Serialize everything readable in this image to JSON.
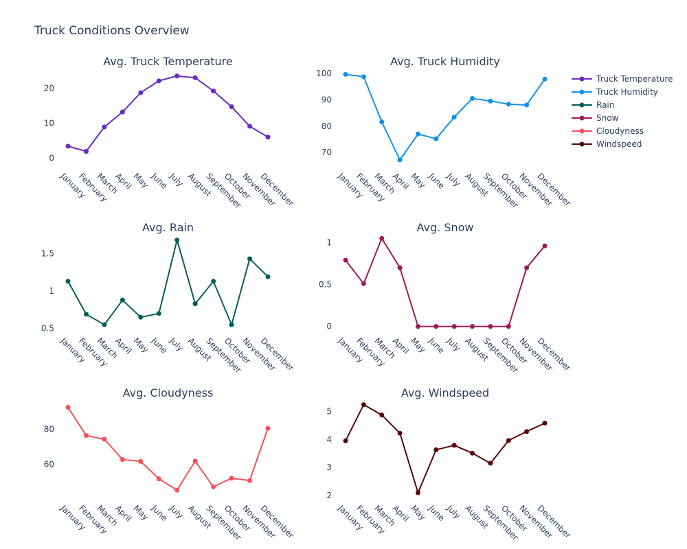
{
  "title": "Truck Conditions Overview",
  "legend": [
    {
      "label": "Truck Temperature",
      "color": "#6929c4"
    },
    {
      "label": "Truck Humidity",
      "color": "#1192e8"
    },
    {
      "label": "Rain",
      "color": "#005d5d"
    },
    {
      "label": "Snow",
      "color": "#9f1853"
    },
    {
      "label": "Cloudyness",
      "color": "#fa4d56"
    },
    {
      "label": "Windspeed",
      "color": "#570408"
    }
  ],
  "chart_data": [
    {
      "type": "line",
      "title": "Avg. Truck Temperature",
      "categories": [
        "January",
        "February",
        "March",
        "April",
        "May",
        "June",
        "July",
        "August",
        "September",
        "October",
        "November",
        "December"
      ],
      "series": [
        {
          "name": "Truck Temperature",
          "color": "#6929c4",
          "values": [
            3.4,
            1.9,
            8.9,
            13.2,
            18.7,
            22.1,
            23.5,
            23.0,
            19.2,
            14.7,
            9.1,
            6.0
          ]
        }
      ],
      "ylim": [
        -2.5,
        26.0
      ],
      "yticks": [
        0,
        10,
        20
      ]
    },
    {
      "type": "line",
      "title": "Avg. Truck Humidity",
      "categories": [
        "January",
        "February",
        "March",
        "April",
        "May",
        "June",
        "July",
        "August",
        "September",
        "October",
        "November",
        "December"
      ],
      "series": [
        {
          "name": "Truck Humidity",
          "color": "#1192e8",
          "values": [
            99.6,
            98.7,
            81.6,
            67.2,
            77.0,
            75.2,
            83.4,
            90.5,
            89.5,
            88.3,
            88.0,
            97.8
          ]
        }
      ],
      "ylim": [
        64.6,
        102.3
      ],
      "yticks": [
        70,
        80,
        90,
        100
      ]
    },
    {
      "type": "line",
      "title": "Avg. Rain",
      "categories": [
        "January",
        "February",
        "March",
        "April",
        "May",
        "June",
        "July",
        "August",
        "September",
        "October",
        "November",
        "December"
      ],
      "series": [
        {
          "name": "Rain",
          "color": "#005d5d",
          "values": [
            1.13,
            0.69,
            0.55,
            0.88,
            0.65,
            0.7,
            1.68,
            0.83,
            1.13,
            0.55,
            1.43,
            1.19
          ]
        }
      ],
      "ylim": [
        0.46,
        1.77
      ],
      "yticks": [
        0.5,
        1,
        1.5
      ]
    },
    {
      "type": "line",
      "title": "Avg. Snow",
      "categories": [
        "January",
        "February",
        "March",
        "April",
        "May",
        "June",
        "July",
        "August",
        "September",
        "October",
        "November",
        "December"
      ],
      "series": [
        {
          "name": "Snow",
          "color": "#9f1853",
          "values": [
            0.79,
            0.51,
            1.05,
            0.7,
            0,
            0,
            0,
            0,
            0,
            0,
            0.7,
            0.96
          ]
        }
      ],
      "ylim": [
        -0.06,
        1.11
      ],
      "yticks": [
        0,
        0.5,
        1
      ]
    },
    {
      "type": "line",
      "title": "Avg. Cloudyness",
      "categories": [
        "January",
        "February",
        "March",
        "April",
        "May",
        "June",
        "July",
        "August",
        "September",
        "October",
        "November",
        "December"
      ],
      "series": [
        {
          "name": "Cloudyness",
          "color": "#fa4d56",
          "values": [
            92.6,
            76.5,
            74.4,
            62.8,
            61.7,
            51.8,
            45.3,
            61.9,
            47.2,
            52.1,
            50.8,
            80.6
          ]
        }
      ],
      "ylim": [
        40.3,
        97.5
      ],
      "yticks": [
        60,
        80
      ]
    },
    {
      "type": "line",
      "title": "Avg. Windspeed",
      "categories": [
        "January",
        "February",
        "March",
        "April",
        "May",
        "June",
        "July",
        "August",
        "September",
        "October",
        "November",
        "December"
      ],
      "series": [
        {
          "name": "Windspeed",
          "color": "#570408",
          "values": [
            3.95,
            5.24,
            4.87,
            4.22,
            2.1,
            3.63,
            3.79,
            3.51,
            3.15,
            3.96,
            4.28,
            4.58
          ]
        }
      ],
      "ylim": [
        1.88,
        5.45
      ],
      "yticks": [
        2,
        3,
        4,
        5
      ]
    }
  ]
}
